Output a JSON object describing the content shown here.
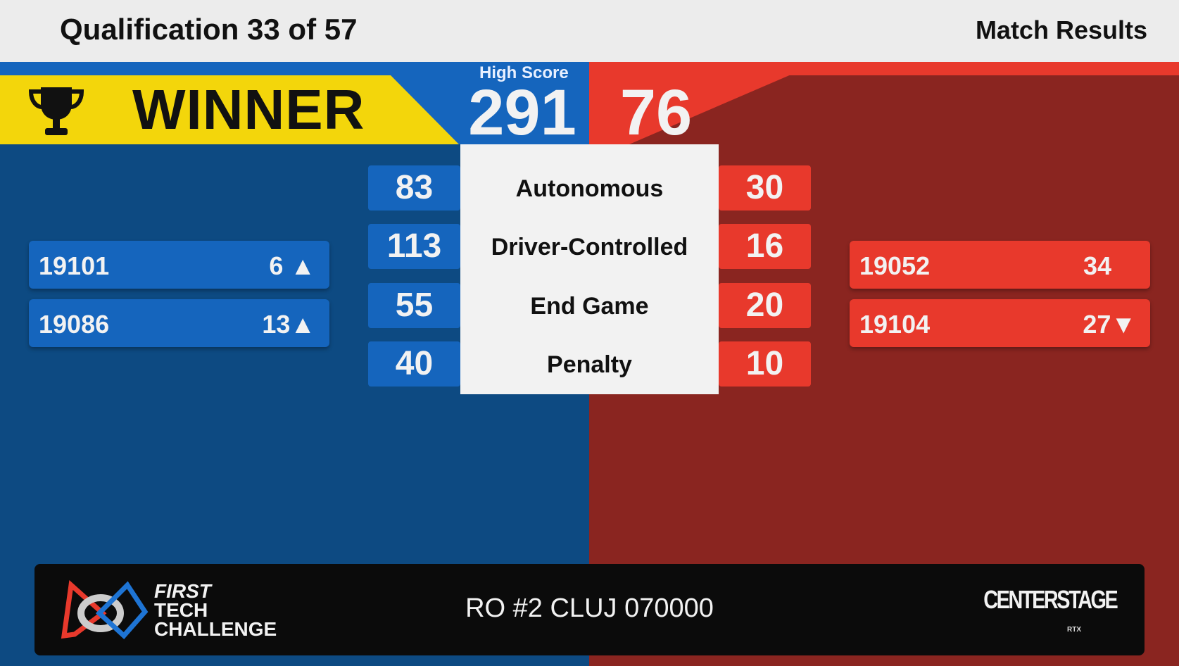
{
  "header": {
    "title": "Qualification 33 of 57",
    "right_label": "Match Results"
  },
  "banner": {
    "winner_label": "WINNER",
    "high_score_label": "High Score",
    "blue_score": "291",
    "red_score": "76"
  },
  "colors": {
    "blue": "#1565bd",
    "blue_dark": "#0d4a82",
    "red": "#e8392c",
    "red_dark": "#8a2520",
    "yellow": "#f3d60b"
  },
  "breakdown": [
    {
      "label": "Autonomous",
      "blue": "83",
      "red": "30"
    },
    {
      "label": "Driver-Controlled",
      "blue": "113",
      "red": "16"
    },
    {
      "label": "End Game",
      "blue": "55",
      "red": "20"
    },
    {
      "label": "Penalty",
      "blue": "40",
      "red": "10"
    }
  ],
  "blue_teams": [
    {
      "number": "19101",
      "rank": "6 ▲"
    },
    {
      "number": "19086",
      "rank": "13▲"
    }
  ],
  "red_teams": [
    {
      "number": "19052",
      "rank": "34"
    },
    {
      "number": "19104",
      "rank": "27▼"
    }
  ],
  "footer": {
    "event": "RO #2 CLUJ 070000",
    "ftc_logo": [
      "FIRST",
      "TECH",
      "CHALLENGE"
    ],
    "game_logo": "CENTERSTAGE",
    "sponsor": "RTX"
  }
}
